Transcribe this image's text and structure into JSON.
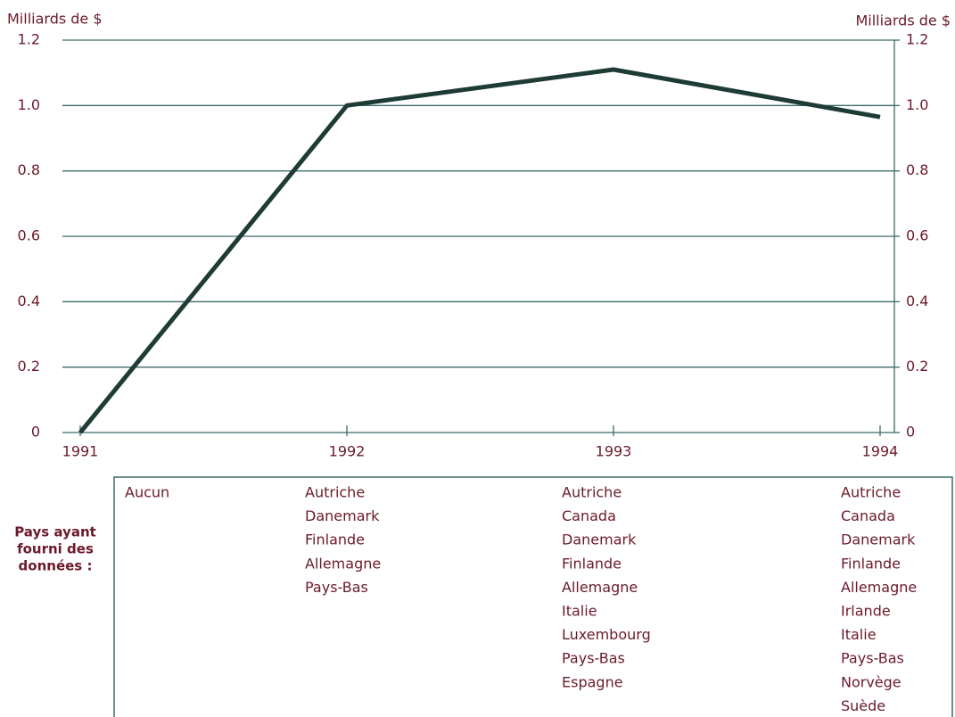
{
  "chart_data": {
    "type": "line",
    "ylabel": "Milliards de $",
    "y2label": "Milliards de $",
    "categories": [
      "1991",
      "1992",
      "1993",
      "1994"
    ],
    "series": [
      {
        "color": "#1e3b36",
        "values": [
          0,
          1.0,
          1.11,
          0.965
        ]
      }
    ],
    "ylim": [
      0,
      1.2
    ],
    "yticks": [
      0,
      0.2,
      0.4,
      0.6,
      0.8,
      {
        "value": 1.0,
        "label": "1.0"
      },
      1.2
    ],
    "y2lim": [
      0,
      1.2
    ],
    "y2ticks": [
      0,
      0.2,
      0.4,
      0.6,
      0.8,
      {
        "value": 1.0,
        "label": "1.0"
      },
      1.2
    ],
    "grid": true,
    "countries": {
      "label": [
        "Pays ayant",
        "fourni des",
        "données :"
      ],
      "columns": [
        [
          "Aucun"
        ],
        [
          "Autriche",
          "Danemark",
          "Finlande",
          "Allemagne",
          "Pays-Bas"
        ],
        [
          "Autriche",
          "Canada",
          "Danemark",
          "Finlande",
          "Allemagne",
          "Italie",
          "Luxembourg",
          "Pays-Bas",
          "Espagne"
        ],
        [
          "Autriche",
          "Canada",
          "Danemark",
          "Finlande",
          "Allemagne",
          "Irlande",
          "Italie",
          "Pays-Bas",
          "Norvège",
          "Suède"
        ]
      ]
    }
  }
}
